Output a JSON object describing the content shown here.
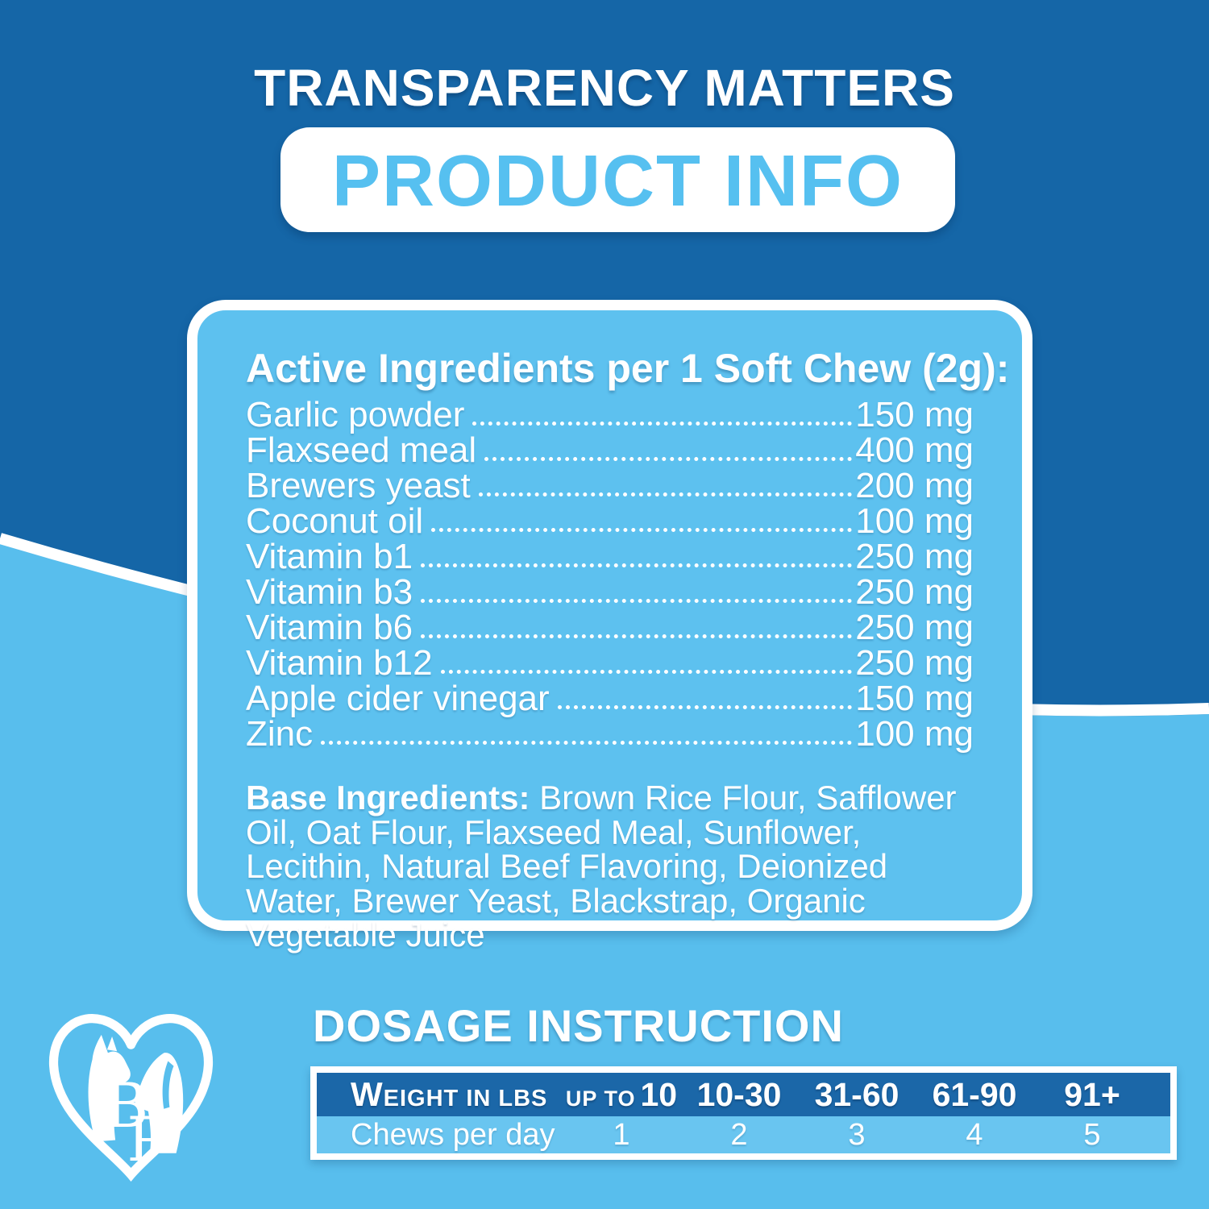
{
  "colors": {
    "dark_blue": "#1566a7",
    "light_blue": "#58beed",
    "panel_blue": "#5dc1ef",
    "table_header_blue": "#1b67a8",
    "table_row_blue": "#69c5f0",
    "title_blue": "#56c0f0",
    "white": "#ffffff"
  },
  "header": {
    "eyebrow": "TRANSPARENCY MATTERS",
    "title": "PRODUCT INFO"
  },
  "panel": {
    "heading": "Active Ingredients per 1 Soft Chew (2g):",
    "ingredients": [
      {
        "name": "Garlic powder",
        "amount": "150 mg"
      },
      {
        "name": "Flaxseed meal",
        "amount": "400 mg"
      },
      {
        "name": "Brewers yeast",
        "amount": "200 mg"
      },
      {
        "name": "Coconut oil",
        "amount": "100 mg"
      },
      {
        "name": "Vitamin b1",
        "amount": "250 mg"
      },
      {
        "name": "Vitamin b3",
        "amount": "250 mg"
      },
      {
        "name": "Vitamin b6",
        "amount": "250 mg"
      },
      {
        "name": "Vitamin b12",
        "amount": "250 mg"
      },
      {
        "name": "Apple cider vinegar",
        "amount": "150 mg"
      },
      {
        "name": "Zinc",
        "amount": "100 mg"
      }
    ],
    "base_label": "Base Ingredients:",
    "base_text": " Brown Rice Flour, Safflower Oil, Oat Flour, Flaxseed Meal, Sunflower, Lecithin, Natural Beef Flavoring, Deionized Water, Brewer Yeast, Blackstrap, Organic Vegetable Juice"
  },
  "dosage": {
    "heading": "DOSAGE INSTRUCTION",
    "table": {
      "row_header": "Weight in lbs",
      "columns": [
        {
          "prefix": "up to",
          "label": "10"
        },
        {
          "prefix": "",
          "label": "10-30"
        },
        {
          "prefix": "",
          "label": "31-60"
        },
        {
          "prefix": "",
          "label": "61-90"
        },
        {
          "prefix": "",
          "label": "91+"
        }
      ],
      "row_label": "Chews per day",
      "values": [
        "1",
        "2",
        "3",
        "4",
        "5"
      ]
    }
  },
  "logo": {
    "monogram_b": "B",
    "monogram_p": "P"
  }
}
